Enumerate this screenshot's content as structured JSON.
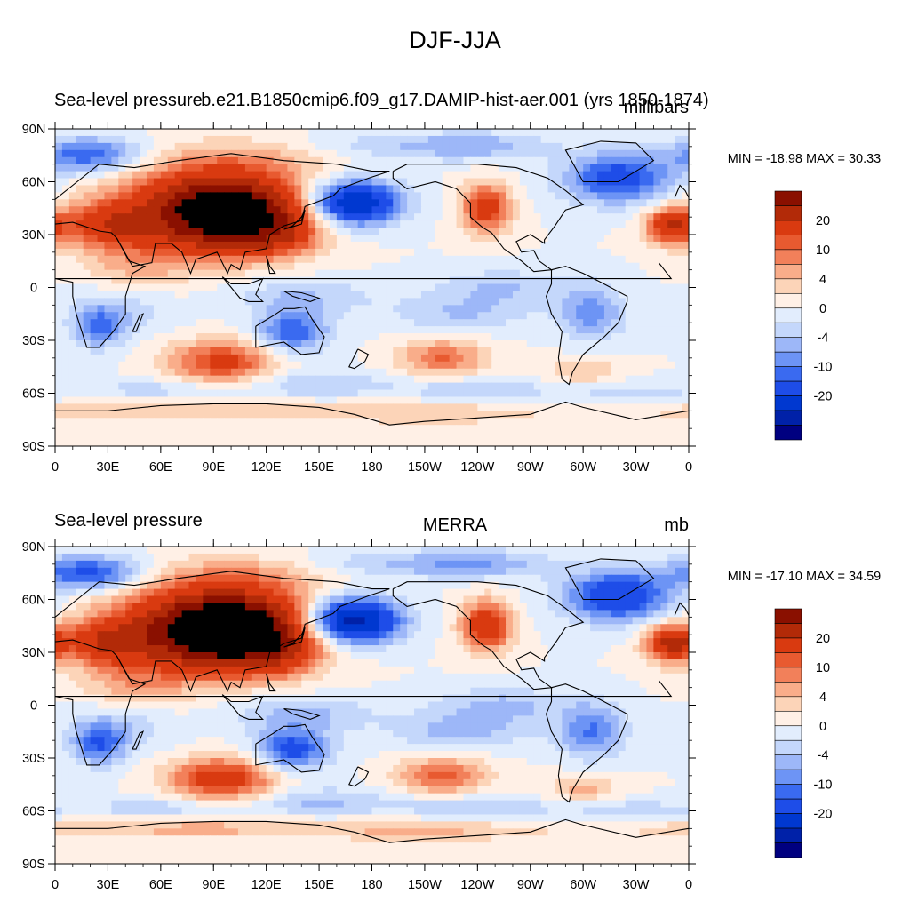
{
  "title": "DJF-JJA",
  "colors": {
    "levels": [
      "#000080",
      "#0021a8",
      "#0038d0",
      "#1e4de8",
      "#3a6af0",
      "#6d94f5",
      "#9db7f8",
      "#c4d7fb",
      "#e2edfd",
      "#fff0e6",
      "#fcd4b8",
      "#f9ad8a",
      "#f2805a",
      "#e85a30",
      "#d93a10",
      "#b22a08",
      "#8a1000"
    ],
    "land": "#000000"
  },
  "chart_data": [
    {
      "type": "heatmap",
      "title": "Sea-level pressure",
      "subtitle": "b.e21.B1850cmip6.f09_g17.DAMIP-hist-aer.001 (yrs 1850-1874)",
      "units": "millibars",
      "min_max_text": "MIN = -18.98 MAX =  30.33",
      "min": -18.98,
      "max": 30.33,
      "x_tick_labels": [
        "0",
        "30E",
        "60E",
        "90E",
        "120E",
        "150E",
        "180",
        "150W",
        "120W",
        "90W",
        "60W",
        "30W",
        "0"
      ],
      "y_tick_labels": [
        "90N",
        "60N",
        "30N",
        "0",
        "30S",
        "60S",
        "90S"
      ],
      "x_range": [
        0,
        360
      ],
      "y_range": [
        -90,
        90
      ],
      "colorbar_labels": [
        "20",
        "10",
        "4",
        "0",
        "-4",
        "-10",
        "-20"
      ],
      "contour_levels": [
        -25,
        -20,
        -15,
        -10,
        -8,
        -6,
        -4,
        -2,
        0,
        2,
        4,
        6,
        8,
        10,
        15,
        20,
        25
      ]
    },
    {
      "type": "heatmap",
      "title": "Sea-level pressure",
      "subtitle": "MERRA",
      "units": "mb",
      "min_max_text": "MIN = -17.10 MAX =  34.59",
      "min": -17.1,
      "max": 34.59,
      "x_tick_labels": [
        "0",
        "30E",
        "60E",
        "90E",
        "120E",
        "150E",
        "180",
        "150W",
        "120W",
        "90W",
        "60W",
        "30W",
        "0"
      ],
      "y_tick_labels": [
        "90N",
        "60N",
        "30N",
        "0",
        "30S",
        "60S",
        "90S"
      ],
      "x_range": [
        0,
        360
      ],
      "y_range": [
        -90,
        90
      ],
      "colorbar_labels": [
        "20",
        "10",
        "4",
        "0",
        "-4",
        "-10",
        "-20"
      ],
      "contour_levels": [
        -25,
        -20,
        -15,
        -10,
        -8,
        -6,
        -4,
        -2,
        0,
        2,
        4,
        6,
        8,
        10,
        15,
        20,
        25
      ]
    }
  ]
}
